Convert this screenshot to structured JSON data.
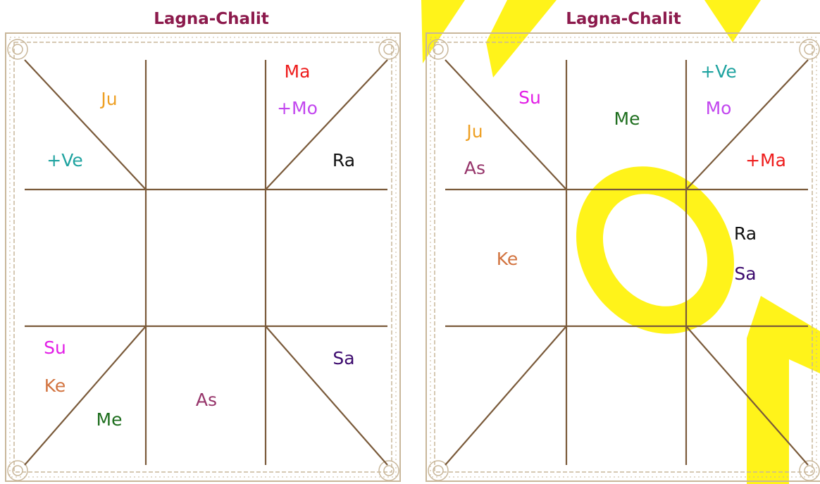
{
  "charts": [
    {
      "title": "Lagna-Chalit",
      "labels": [
        {
          "text": "Ju",
          "color": "#eea024"
        },
        {
          "text": "+Ve",
          "color": "#1fa3a0"
        },
        {
          "text": "Ma",
          "color": "#ee1c1c"
        },
        {
          "text": "+Mo",
          "color": "#c246ef"
        },
        {
          "text": "Ra",
          "color": "#111111"
        },
        {
          "text": "Su",
          "color": "#e21ee6"
        },
        {
          "text": "Ke",
          "color": "#d2733f"
        },
        {
          "text": "Me",
          "color": "#1e6e1e"
        },
        {
          "text": "As",
          "color": "#96346a"
        },
        {
          "text": "Sa",
          "color": "#3c0a6e"
        }
      ]
    },
    {
      "title": "Lagna-Chalit",
      "labels": [
        {
          "text": "Su",
          "color": "#e21ee6"
        },
        {
          "text": "Ju",
          "color": "#eea024"
        },
        {
          "text": "As",
          "color": "#96346a"
        },
        {
          "text": "Me",
          "color": "#1e6e1e"
        },
        {
          "text": "+Ve",
          "color": "#1fa3a0"
        },
        {
          "text": "Mo",
          "color": "#c246ef"
        },
        {
          "text": "+Ma",
          "color": "#ee1c1c"
        },
        {
          "text": "Ke",
          "color": "#d2733f"
        },
        {
          "text": "Ra",
          "color": "#111111"
        },
        {
          "text": "Sa",
          "color": "#3c0a6e"
        }
      ]
    }
  ]
}
